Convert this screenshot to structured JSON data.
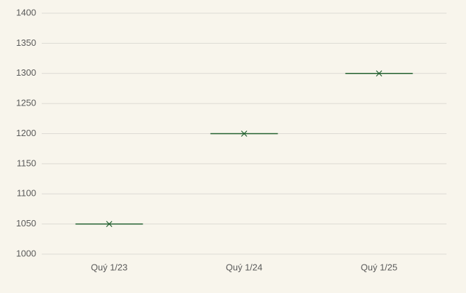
{
  "chart_data": {
    "type": "box",
    "categories": [
      "Quý 1/23",
      "Quý 1/24",
      "Quý 1/25"
    ],
    "values": [
      1050,
      1200,
      1300
    ],
    "color": "#1f5e2c",
    "ylim": [
      1000,
      1400
    ],
    "yticks": [
      1000,
      1050,
      1100,
      1150,
      1200,
      1250,
      1300,
      1350,
      1400
    ],
    "grid": true
  }
}
